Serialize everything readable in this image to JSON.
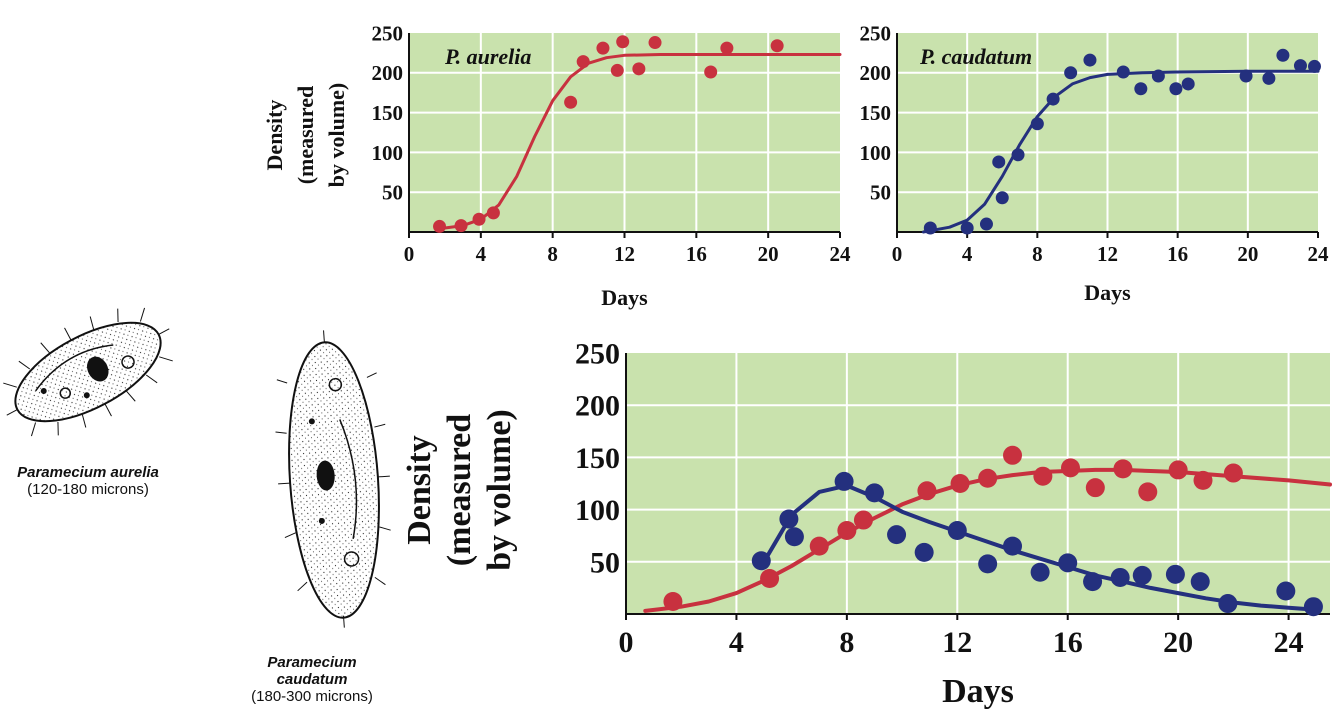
{
  "organisms": [
    {
      "name": "Paramecium aurelia",
      "size": "(120-180 microns)"
    },
    {
      "name_line1": "Paramecium",
      "name_line2": "caudatum",
      "size": "(180-300 microns)"
    }
  ],
  "colors": {
    "plot_bg": "#c9e2ad",
    "grid": "#ffffff",
    "aurelia": "#c8313f",
    "caudatum": "#24307e"
  },
  "chart_data": [
    {
      "type": "scatter",
      "title": "P. aurelia",
      "xlabel": "Days",
      "ylabel_lines": [
        "Density",
        "(measured",
        "by volume)"
      ],
      "xlim": [
        0,
        24
      ],
      "ylim": [
        0,
        250
      ],
      "xticks": [
        0,
        4,
        8,
        12,
        16,
        20,
        24
      ],
      "yticks": [
        50,
        100,
        150,
        200,
        250
      ],
      "series": [
        {
          "color": "#c8313f",
          "points": [
            [
              1.7,
              7
            ],
            [
              2.9,
              8
            ],
            [
              3.9,
              16
            ],
            [
              4.7,
              24
            ],
            [
              9.0,
              163
            ],
            [
              9.7,
              214
            ],
            [
              10.8,
              231
            ],
            [
              11.6,
              203
            ],
            [
              11.9,
              239
            ],
            [
              12.8,
              205
            ],
            [
              13.7,
              238
            ],
            [
              16.8,
              201
            ],
            [
              17.7,
              231
            ],
            [
              20.5,
              234
            ]
          ],
          "curve": [
            [
              1.5,
              4
            ],
            [
              2,
              5
            ],
            [
              3,
              8
            ],
            [
              4,
              16
            ],
            [
              5,
              34
            ],
            [
              6,
              70
            ],
            [
              7,
              120
            ],
            [
              8,
              165
            ],
            [
              9,
              195
            ],
            [
              10,
              212
            ],
            [
              11,
              219
            ],
            [
              12,
              222
            ],
            [
              14,
              223
            ],
            [
              16,
              223
            ],
            [
              20,
              223
            ],
            [
              24,
              223
            ]
          ]
        }
      ]
    },
    {
      "type": "scatter",
      "title": "P. caudatum",
      "xlabel": "Days",
      "ylabel_lines": [],
      "xlim": [
        0,
        24
      ],
      "ylim": [
        0,
        250
      ],
      "xticks": [
        0,
        4,
        8,
        12,
        16,
        20,
        24
      ],
      "yticks": [
        50,
        100,
        150,
        200,
        250
      ],
      "series": [
        {
          "color": "#24307e",
          "points": [
            [
              1.9,
              5
            ],
            [
              4.0,
              5
            ],
            [
              5.1,
              10
            ],
            [
              5.8,
              88
            ],
            [
              6.0,
              43
            ],
            [
              6.9,
              97
            ],
            [
              8.0,
              136
            ],
            [
              8.9,
              167
            ],
            [
              9.9,
              200
            ],
            [
              11.0,
              216
            ],
            [
              12.9,
              201
            ],
            [
              13.9,
              180
            ],
            [
              14.9,
              196
            ],
            [
              15.9,
              180
            ],
            [
              16.6,
              186
            ],
            [
              19.9,
              196
            ],
            [
              21.2,
              193
            ],
            [
              22.0,
              222
            ],
            [
              23.0,
              209
            ],
            [
              23.8,
              208
            ]
          ],
          "curve": [
            [
              1.5,
              0
            ],
            [
              3,
              6
            ],
            [
              4,
              15
            ],
            [
              5,
              35
            ],
            [
              6,
              70
            ],
            [
              7,
              110
            ],
            [
              8,
              145
            ],
            [
              9,
              170
            ],
            [
              10,
              186
            ],
            [
              11,
              194
            ],
            [
              12,
              198
            ],
            [
              14,
              200
            ],
            [
              16,
              201
            ],
            [
              20,
              202
            ],
            [
              24,
              202
            ]
          ]
        }
      ]
    },
    {
      "type": "scatter",
      "title": "",
      "xlabel": "Days",
      "ylabel_lines": [
        "Density",
        "(measured",
        "by volume)"
      ],
      "xlim": [
        0,
        25.5
      ],
      "ylim": [
        0,
        250
      ],
      "xticks": [
        0,
        4,
        8,
        12,
        16,
        20,
        24
      ],
      "yticks": [
        50,
        100,
        150,
        200,
        250
      ],
      "series": [
        {
          "color": "#c8313f",
          "points": [
            [
              1.7,
              12
            ],
            [
              5.2,
              34
            ],
            [
              7.0,
              65
            ],
            [
              8.0,
              80
            ],
            [
              8.6,
              90
            ],
            [
              10.9,
              118
            ],
            [
              12.1,
              125
            ],
            [
              13.1,
              130
            ],
            [
              14.0,
              152
            ],
            [
              15.1,
              132
            ],
            [
              16.1,
              140
            ],
            [
              17.0,
              121
            ],
            [
              18.0,
              139
            ],
            [
              18.9,
              117
            ],
            [
              20.0,
              138
            ],
            [
              20.9,
              128
            ],
            [
              22.0,
              135
            ]
          ],
          "curve": [
            [
              0.7,
              3
            ],
            [
              2,
              7
            ],
            [
              3,
              12
            ],
            [
              4,
              20
            ],
            [
              5,
              32
            ],
            [
              6,
              46
            ],
            [
              7,
              62
            ],
            [
              8,
              78
            ],
            [
              9,
              92
            ],
            [
              10,
              105
            ],
            [
              11,
              115
            ],
            [
              12,
              123
            ],
            [
              13,
              129
            ],
            [
              14,
              133
            ],
            [
              15,
              136
            ],
            [
              16,
              137
            ],
            [
              17,
              138
            ],
            [
              18,
              138
            ],
            [
              19,
              137
            ],
            [
              20,
              136
            ],
            [
              22,
              132
            ],
            [
              24,
              128
            ],
            [
              25.5,
              124
            ]
          ]
        },
        {
          "color": "#24307e",
          "points": [
            [
              4.9,
              51
            ],
            [
              5.9,
              91
            ],
            [
              6.1,
              74
            ],
            [
              7.9,
              127
            ],
            [
              9.0,
              116
            ],
            [
              9.8,
              76
            ],
            [
              10.8,
              59
            ],
            [
              12.0,
              80
            ],
            [
              13.1,
              48
            ],
            [
              14.0,
              65
            ],
            [
              15.0,
              40
            ],
            [
              16.0,
              49
            ],
            [
              16.9,
              31
            ],
            [
              17.9,
              35
            ],
            [
              18.7,
              37
            ],
            [
              19.9,
              38
            ],
            [
              20.8,
              31
            ],
            [
              21.8,
              10
            ],
            [
              23.9,
              22
            ],
            [
              24.9,
              7
            ]
          ],
          "curve": [
            [
              5,
              50
            ],
            [
              6,
              95
            ],
            [
              7,
              117
            ],
            [
              8,
              123
            ],
            [
              9,
              112
            ],
            [
              10,
              98
            ],
            [
              11,
              88
            ],
            [
              12,
              79
            ],
            [
              13,
              70
            ],
            [
              14,
              61
            ],
            [
              15,
              53
            ],
            [
              16,
              45
            ],
            [
              17,
              37
            ],
            [
              18,
              31
            ],
            [
              19,
              25
            ],
            [
              20,
              20
            ],
            [
              21,
              15
            ],
            [
              22,
              11
            ],
            [
              23,
              8
            ],
            [
              24,
              6
            ],
            [
              25,
              4
            ]
          ]
        }
      ]
    }
  ]
}
